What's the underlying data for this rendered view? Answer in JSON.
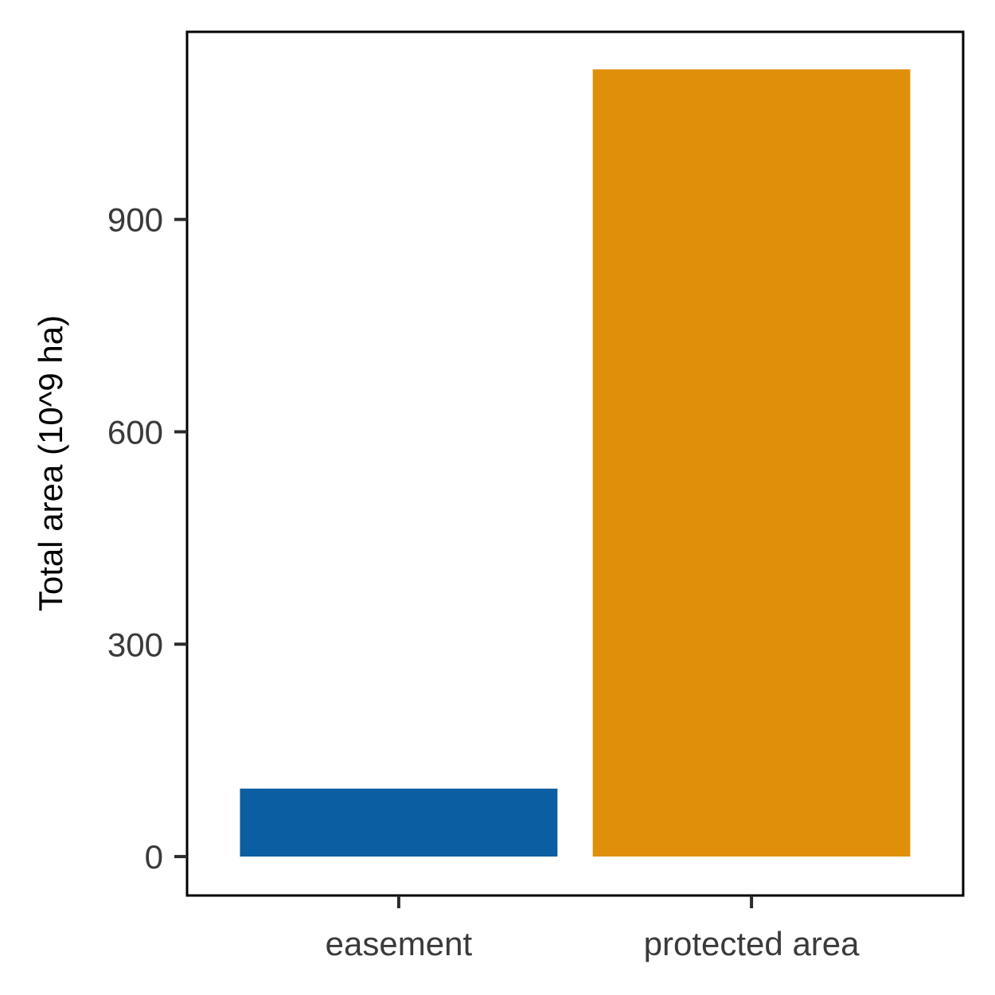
{
  "chart_data": {
    "type": "bar",
    "title": "",
    "xlabel": "",
    "ylabel": "Total area (10^9 ha)",
    "categories": [
      "easement",
      "protected area"
    ],
    "values": [
      96,
      1112
    ],
    "colors": [
      "#0b5ea1",
      "#df8f0a"
    ],
    "ylim": [
      -55,
      1165
    ],
    "yticks": [
      0,
      300,
      600,
      900
    ],
    "ytick_labels": [
      "0",
      "300",
      "600",
      "900"
    ],
    "grid": false,
    "legend": "none"
  }
}
